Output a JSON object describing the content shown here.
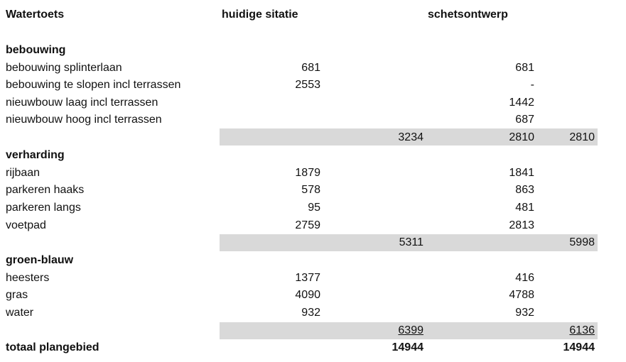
{
  "header": {
    "title": "Watertoets",
    "col_current": "huidige sitatie",
    "col_sketch": "schetsontwerp"
  },
  "sections": {
    "bebouwing": {
      "title": "bebouwing",
      "rows": [
        {
          "label": "bebouwing splinterlaan",
          "current": "681",
          "sketch": "681"
        },
        {
          "label": "bebouwing te slopen incl terrassen",
          "current": "2553",
          "sketch": "-"
        },
        {
          "label": "nieuwbouw laag  incl terrassen",
          "current": "",
          "sketch": "1442"
        },
        {
          "label": "nieuwbouw hoog incl terrassen",
          "current": "",
          "sketch": "687"
        }
      ],
      "subtotal_current": "3234",
      "subtotal_sketch_a": "2810",
      "subtotal_sketch_b": "2810"
    },
    "verharding": {
      "title": "verharding",
      "rows": [
        {
          "label": "rijbaan",
          "current": "1879",
          "sketch": "1841"
        },
        {
          "label": "parkeren haaks",
          "current": "578",
          "sketch": "863"
        },
        {
          "label": "parkeren langs",
          "current": "95",
          "sketch": "481"
        },
        {
          "label": "voetpad",
          "current": "2759",
          "sketch": "2813"
        }
      ],
      "subtotal_current": "5311",
      "subtotal_sketch": "5998"
    },
    "groenblauw": {
      "title": "groen-blauw",
      "rows": [
        {
          "label": "heesters",
          "current": "1377",
          "sketch": "416"
        },
        {
          "label": "gras",
          "current": "4090",
          "sketch": "4788"
        },
        {
          "label": "water",
          "current": "932",
          "sketch": "932"
        }
      ],
      "subtotal_current": "6399",
      "subtotal_sketch": "6136"
    }
  },
  "total": {
    "label": "totaal plangebied",
    "current": "14944",
    "sketch": "14944"
  }
}
